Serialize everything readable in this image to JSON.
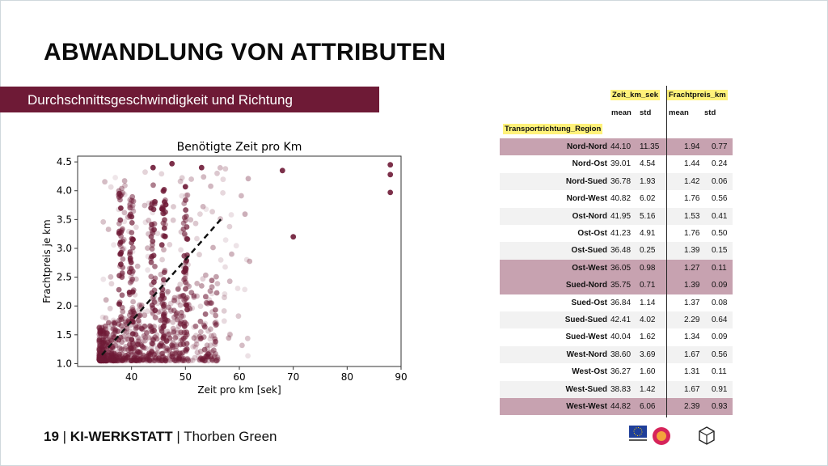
{
  "slide": {
    "title": "ABWANDLUNG VON ATTRIBUTEN",
    "subtitle": "Durchschnittsgeschwindigkeit und Richtung",
    "footer_page": "19",
    "footer_org": "KI-WERKSTATT",
    "footer_author": "Thorben  Green",
    "accent_color": "#6e1a36",
    "highlight_color": "#fff27a",
    "row_highlight_color": "#c7a2b0"
  },
  "table": {
    "col_group_1": "Zeit_km_sek",
    "col_group_2": "Frachtpreis_km",
    "sub_mean": "mean",
    "sub_std": "std",
    "index_name": "Transportrichtung_Region"
  },
  "chart_data": [
    {
      "type": "scatter",
      "title": "Benötigte Zeit pro Km",
      "xlabel": "Zeit pro km [sek]",
      "ylabel": "Frachtpreis je km",
      "xlim": [
        30,
        90
      ],
      "ylim": [
        0.95,
        4.6
      ],
      "xticks": [
        "40",
        "50",
        "60",
        "70",
        "80",
        "90"
      ],
      "yticks": [
        "1.0",
        "1.5",
        "2.0",
        "2.5",
        "3.0",
        "3.5",
        "4.0",
        "4.5"
      ],
      "trend_line": {
        "x": [
          34.5,
          57
        ],
        "y": [
          1.15,
          3.55
        ],
        "style": "dashed"
      },
      "point_color": "#6e1a36",
      "outliers": [
        [
          88,
          4.45
        ],
        [
          88,
          4.28
        ],
        [
          88,
          3.97
        ],
        [
          68,
          4.35
        ],
        [
          70,
          3.2
        ],
        [
          47.5,
          4.47
        ],
        [
          50,
          4.07
        ],
        [
          53,
          4.4
        ],
        [
          44,
          4.4
        ]
      ]
    },
    {
      "type": "table",
      "columns": [
        "Zeit_km_sek mean",
        "Zeit_km_sek std",
        "Frachtpreis_km mean",
        "Frachtpreis_km std"
      ],
      "rows": [
        {
          "name": "Nord-Nord",
          "values": [
            "44.10",
            "11.35",
            "1.94",
            "0.77"
          ],
          "highlight": true
        },
        {
          "name": "Nord-Ost",
          "values": [
            "39.01",
            "4.54",
            "1.44",
            "0.24"
          ],
          "highlight": false
        },
        {
          "name": "Nord-Sued",
          "values": [
            "36.78",
            "1.93",
            "1.42",
            "0.06"
          ],
          "highlight": false
        },
        {
          "name": "Nord-West",
          "values": [
            "40.82",
            "6.02",
            "1.76",
            "0.56"
          ],
          "highlight": false
        },
        {
          "name": "Ost-Nord",
          "values": [
            "41.95",
            "5.16",
            "1.53",
            "0.41"
          ],
          "highlight": false
        },
        {
          "name": "Ost-Ost",
          "values": [
            "41.23",
            "4.91",
            "1.76",
            "0.50"
          ],
          "highlight": false
        },
        {
          "name": "Ost-Sued",
          "values": [
            "36.48",
            "0.25",
            "1.39",
            "0.15"
          ],
          "highlight": false
        },
        {
          "name": "Ost-West",
          "values": [
            "36.05",
            "0.98",
            "1.27",
            "0.11"
          ],
          "highlight": true
        },
        {
          "name": "Sued-Nord",
          "values": [
            "35.75",
            "0.71",
            "1.39",
            "0.09"
          ],
          "highlight": true
        },
        {
          "name": "Sued-Ost",
          "values": [
            "36.84",
            "1.14",
            "1.37",
            "0.08"
          ],
          "highlight": false
        },
        {
          "name": "Sued-Sued",
          "values": [
            "42.41",
            "4.02",
            "2.29",
            "0.64"
          ],
          "highlight": false
        },
        {
          "name": "Sued-West",
          "values": [
            "40.04",
            "1.62",
            "1.34",
            "0.09"
          ],
          "highlight": false
        },
        {
          "name": "West-Nord",
          "values": [
            "38.60",
            "3.69",
            "1.67",
            "0.56"
          ],
          "highlight": false
        },
        {
          "name": "West-Ost",
          "values": [
            "36.27",
            "1.60",
            "1.31",
            "0.11"
          ],
          "highlight": false
        },
        {
          "name": "West-Sued",
          "values": [
            "38.83",
            "1.42",
            "1.67",
            "0.91"
          ],
          "highlight": false
        },
        {
          "name": "West-West",
          "values": [
            "44.82",
            "6.06",
            "2.39",
            "0.93"
          ],
          "highlight": true
        }
      ]
    }
  ]
}
